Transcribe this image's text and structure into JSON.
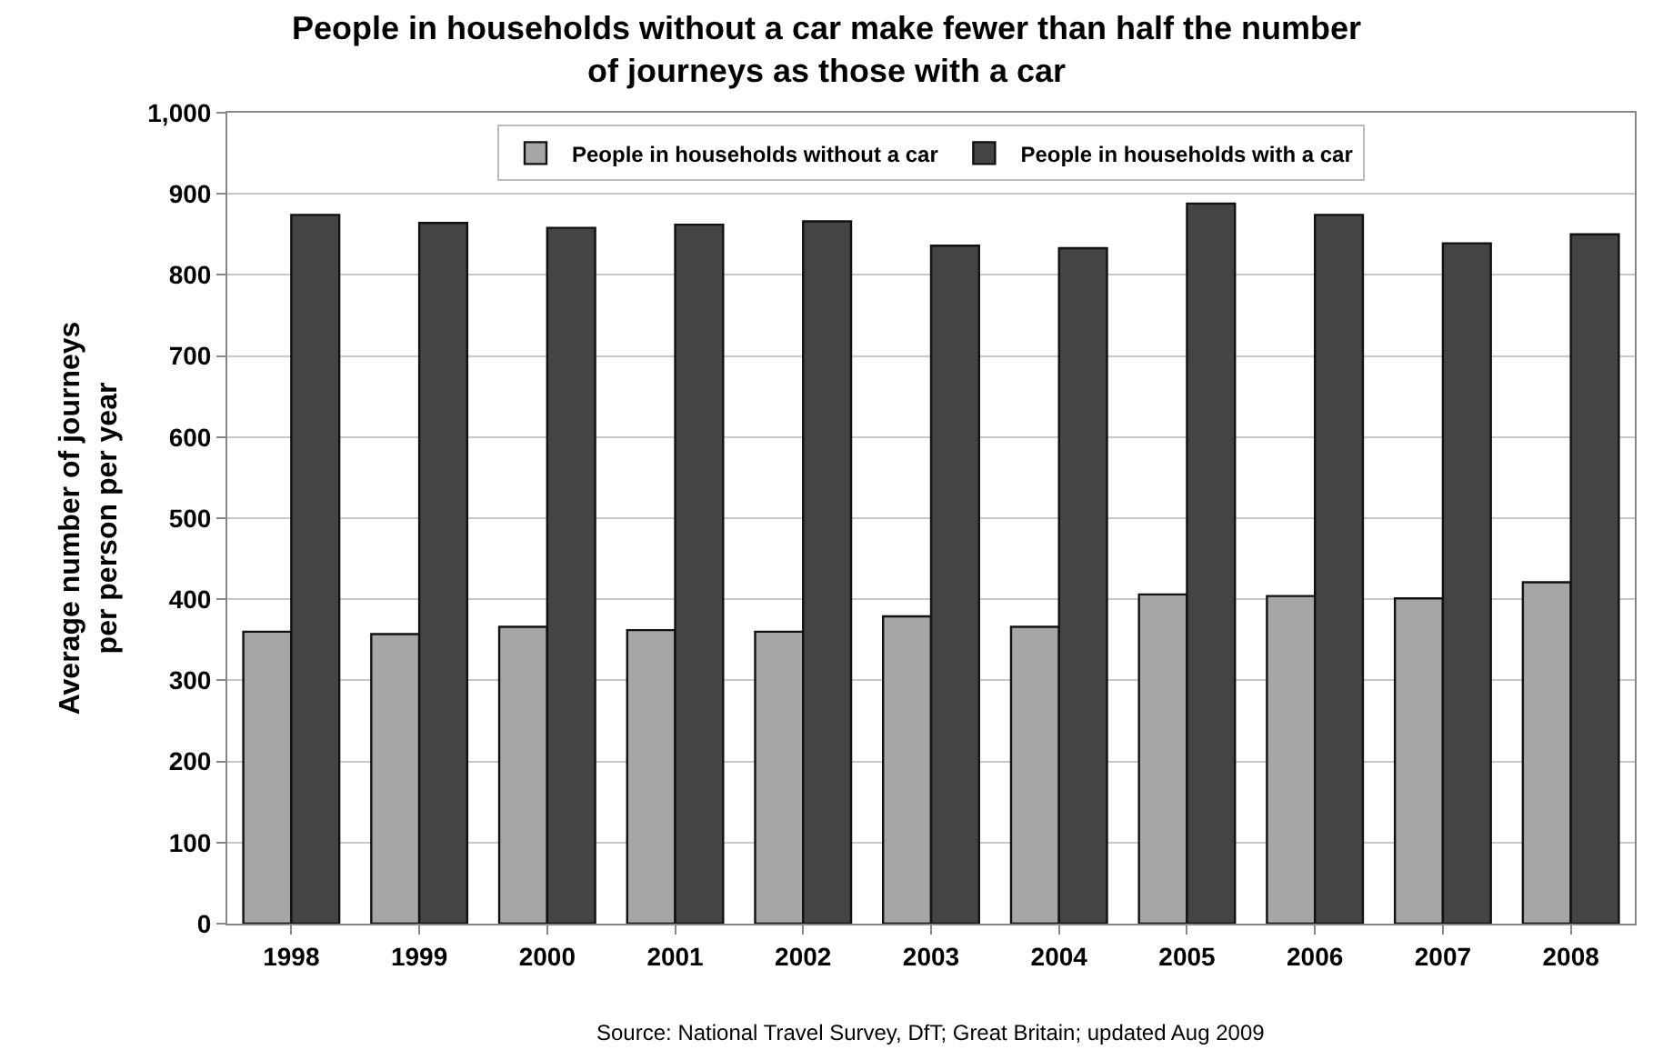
{
  "chart_data": {
    "type": "bar",
    "title": "People in households without a car make fewer than half the number of journeys as those with a car",
    "ylabel": "Average number of journeys per person per year",
    "categories": [
      "1998",
      "1999",
      "2000",
      "2001",
      "2002",
      "2003",
      "2004",
      "2005",
      "2006",
      "2007",
      "2008"
    ],
    "series": [
      {
        "name": "People in households without a car",
        "color": "#a6a6a6",
        "values": [
          360,
          357,
          366,
          362,
          360,
          379,
          366,
          406,
          404,
          401,
          421
        ]
      },
      {
        "name": "People in households with a car",
        "color": "#444444",
        "values": [
          874,
          864,
          858,
          862,
          866,
          836,
          833,
          888,
          874,
          839,
          850
        ]
      }
    ],
    "ylim": [
      0,
      1000
    ],
    "yticks": [
      0,
      100,
      200,
      300,
      400,
      500,
      600,
      700,
      800,
      900,
      {
        "value": 1000,
        "label": "1,000"
      }
    ],
    "grid": "y",
    "legend": "top",
    "annotations": [
      "Source: National Travel Survey, DfT; Great Britain; updated Aug 2009"
    ]
  }
}
